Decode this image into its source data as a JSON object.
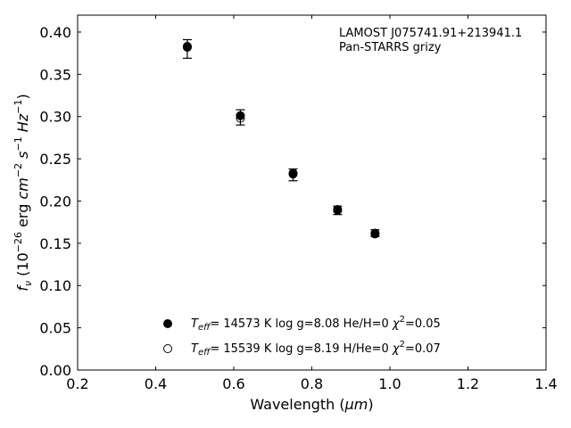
{
  "chart_data": {
    "type": "scatter",
    "annotation_lines": [
      "LAMOST J075741.91+213941.1",
      "Pan-STARRS grizy"
    ],
    "xlabel": "Wavelength (μm)",
    "ylabel": "f_ν (10^-26 erg cm^-2 s^-1 Hz^-1)",
    "xlim": [
      0.2,
      1.4
    ],
    "ylim": [
      0.0,
      0.42
    ],
    "xticks": [
      "0.2",
      "0.4",
      "0.6",
      "0.8",
      "1.0",
      "1.2",
      "1.4"
    ],
    "yticks": [
      "0.00",
      "0.05",
      "0.10",
      "0.15",
      "0.20",
      "0.25",
      "0.30",
      "0.35",
      "0.40"
    ],
    "grid": false,
    "legend_position": "lower-center",
    "observed": {
      "x": [
        0.481,
        0.617,
        0.752,
        0.866,
        0.962
      ],
      "y": [
        0.38,
        0.299,
        0.231,
        0.189,
        0.162
      ],
      "err": [
        0.011,
        0.009,
        0.007,
        0.005,
        0.004
      ]
    },
    "series": [
      {
        "label": "T_eff= 14573 K  log g=8.08  He/H=0  χ²=0.05",
        "marker": "filled",
        "x": [
          0.481,
          0.617,
          0.752,
          0.866,
          0.962
        ],
        "y": [
          0.382,
          0.301,
          0.233,
          0.189,
          0.162
        ]
      },
      {
        "label": "T_eff= 15539 K  log g=8.19  H/He=0  χ²=0.07",
        "marker": "open",
        "x": [
          0.481,
          0.617,
          0.752,
          0.866,
          0.962
        ],
        "y": [
          0.383,
          0.298,
          0.232,
          0.19,
          0.161
        ]
      }
    ],
    "colors": {
      "marker": "#000000",
      "axis": "#000000",
      "background": "#ffffff"
    }
  }
}
